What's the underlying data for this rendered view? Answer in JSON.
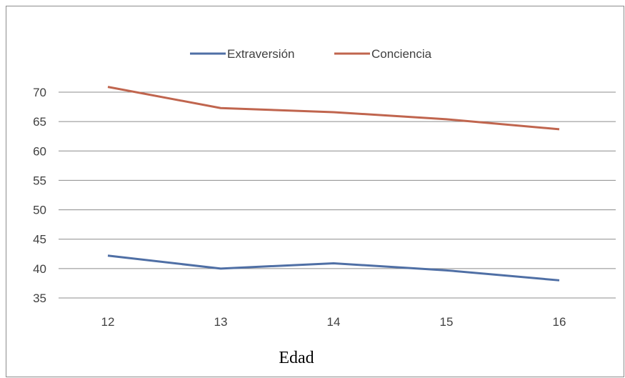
{
  "chart_data": {
    "type": "line",
    "categories": [
      "12",
      "13",
      "14",
      "15",
      "16"
    ],
    "series": [
      {
        "name": "Extraversión",
        "values": [
          42.2,
          40.0,
          40.9,
          39.7,
          38.0
        ],
        "color": "#4f6fa5"
      },
      {
        "name": "Conciencia",
        "values": [
          70.9,
          67.3,
          66.6,
          65.4,
          63.7
        ],
        "color": "#c0654e"
      }
    ],
    "y_ticks": [
      "35",
      "40",
      "45",
      "50",
      "55",
      "60",
      "65",
      "70"
    ],
    "ylim": [
      35,
      75
    ],
    "xlabel": "Edad",
    "ylabel": "",
    "title": "",
    "legend_position": "top-center",
    "grid": "horizontal"
  }
}
